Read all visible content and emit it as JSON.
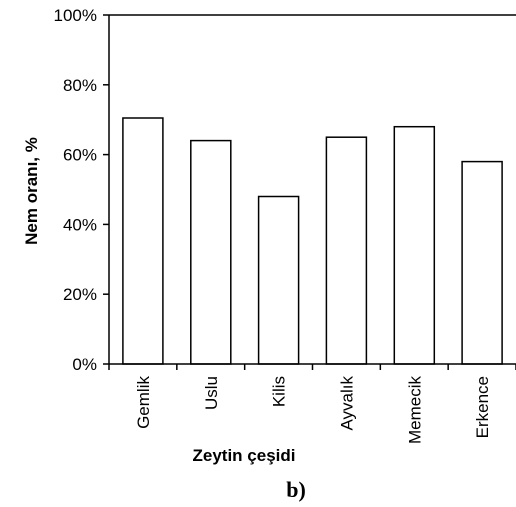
{
  "chart_data": {
    "type": "bar",
    "categories": [
      "Gemlik",
      "Uslu",
      "Kilis",
      "Ayvalık",
      "Memecik",
      "Erkence"
    ],
    "values": [
      70.5,
      64,
      48,
      65,
      68,
      58
    ],
    "xlabel": "Zeytin çeşidi",
    "ylabel": "Nem oranı, %",
    "ylim": [
      0,
      100
    ],
    "yticks": [
      "0%",
      "20%",
      "40%",
      "60%",
      "80%",
      "100%"
    ],
    "grid": false,
    "legend": "none"
  },
  "panel_label": "b)",
  "colors": {
    "bar_fill": "#ffffff",
    "bar_stroke": "#000000",
    "axis": "#000000"
  }
}
